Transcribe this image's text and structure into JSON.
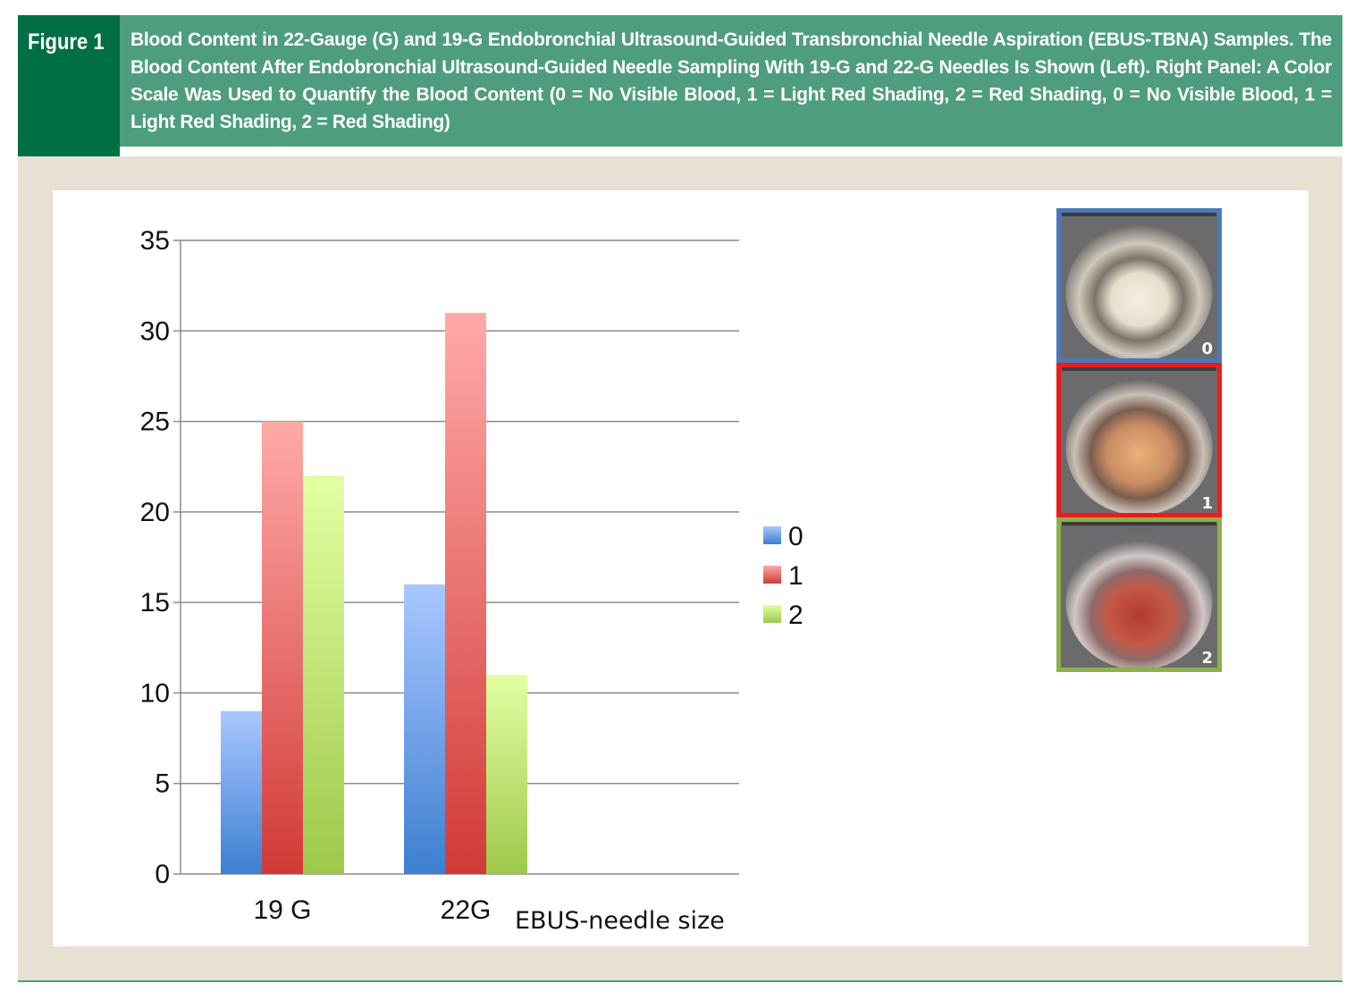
{
  "figure": {
    "label": "Figure 1",
    "caption": "Blood Content in 22-Gauge (G) and 19-G Endobronchial Ultrasound-Guided Transbronchial Needle Aspiration (EBUS-TBNA) Samples. The Blood Content After Endobronchial Ultrasound-Guided Needle Sampling With 19-G and 22-G Needles Is Shown (Left). Right Panel: A Color Scale Was Used to Quantify the Blood Content (0 = No Visible Blood, 1 = Light Red Shading, 2 = Red Shading, 0 = No Visible Blood, 1 = Light Red Shading, 2 = Red Shading)"
  },
  "colors": {
    "header_bg": "#4e9d7e",
    "label_bg": "#006f45",
    "panel_bg": "#e7e0d3",
    "series_0": "#5b8fd6",
    "series_1": "#d9514f",
    "series_2": "#b3d86a",
    "scale_border_0": "#4a78b8",
    "scale_border_1": "#ee1b1b",
    "scale_border_2": "#8cb04a"
  },
  "chart_data": {
    "type": "bar",
    "categories": [
      "19 G",
      "22G"
    ],
    "series": [
      {
        "name": "0",
        "values": [
          9,
          16
        ]
      },
      {
        "name": "1",
        "values": [
          25,
          31
        ]
      },
      {
        "name": "2",
        "values": [
          22,
          11
        ]
      }
    ],
    "title": "",
    "xlabel": "EBUS-needle size",
    "ylabel": "",
    "ylim": [
      0,
      35
    ],
    "yticks": [
      0,
      5,
      10,
      15,
      20,
      25,
      30,
      35
    ],
    "grid": true,
    "legend": "right"
  },
  "color_scale": {
    "items": [
      {
        "label": "0",
        "icon": "sample-well-no-blood"
      },
      {
        "label": "1",
        "icon": "sample-well-light-red"
      },
      {
        "label": "2",
        "icon": "sample-well-red"
      }
    ]
  }
}
